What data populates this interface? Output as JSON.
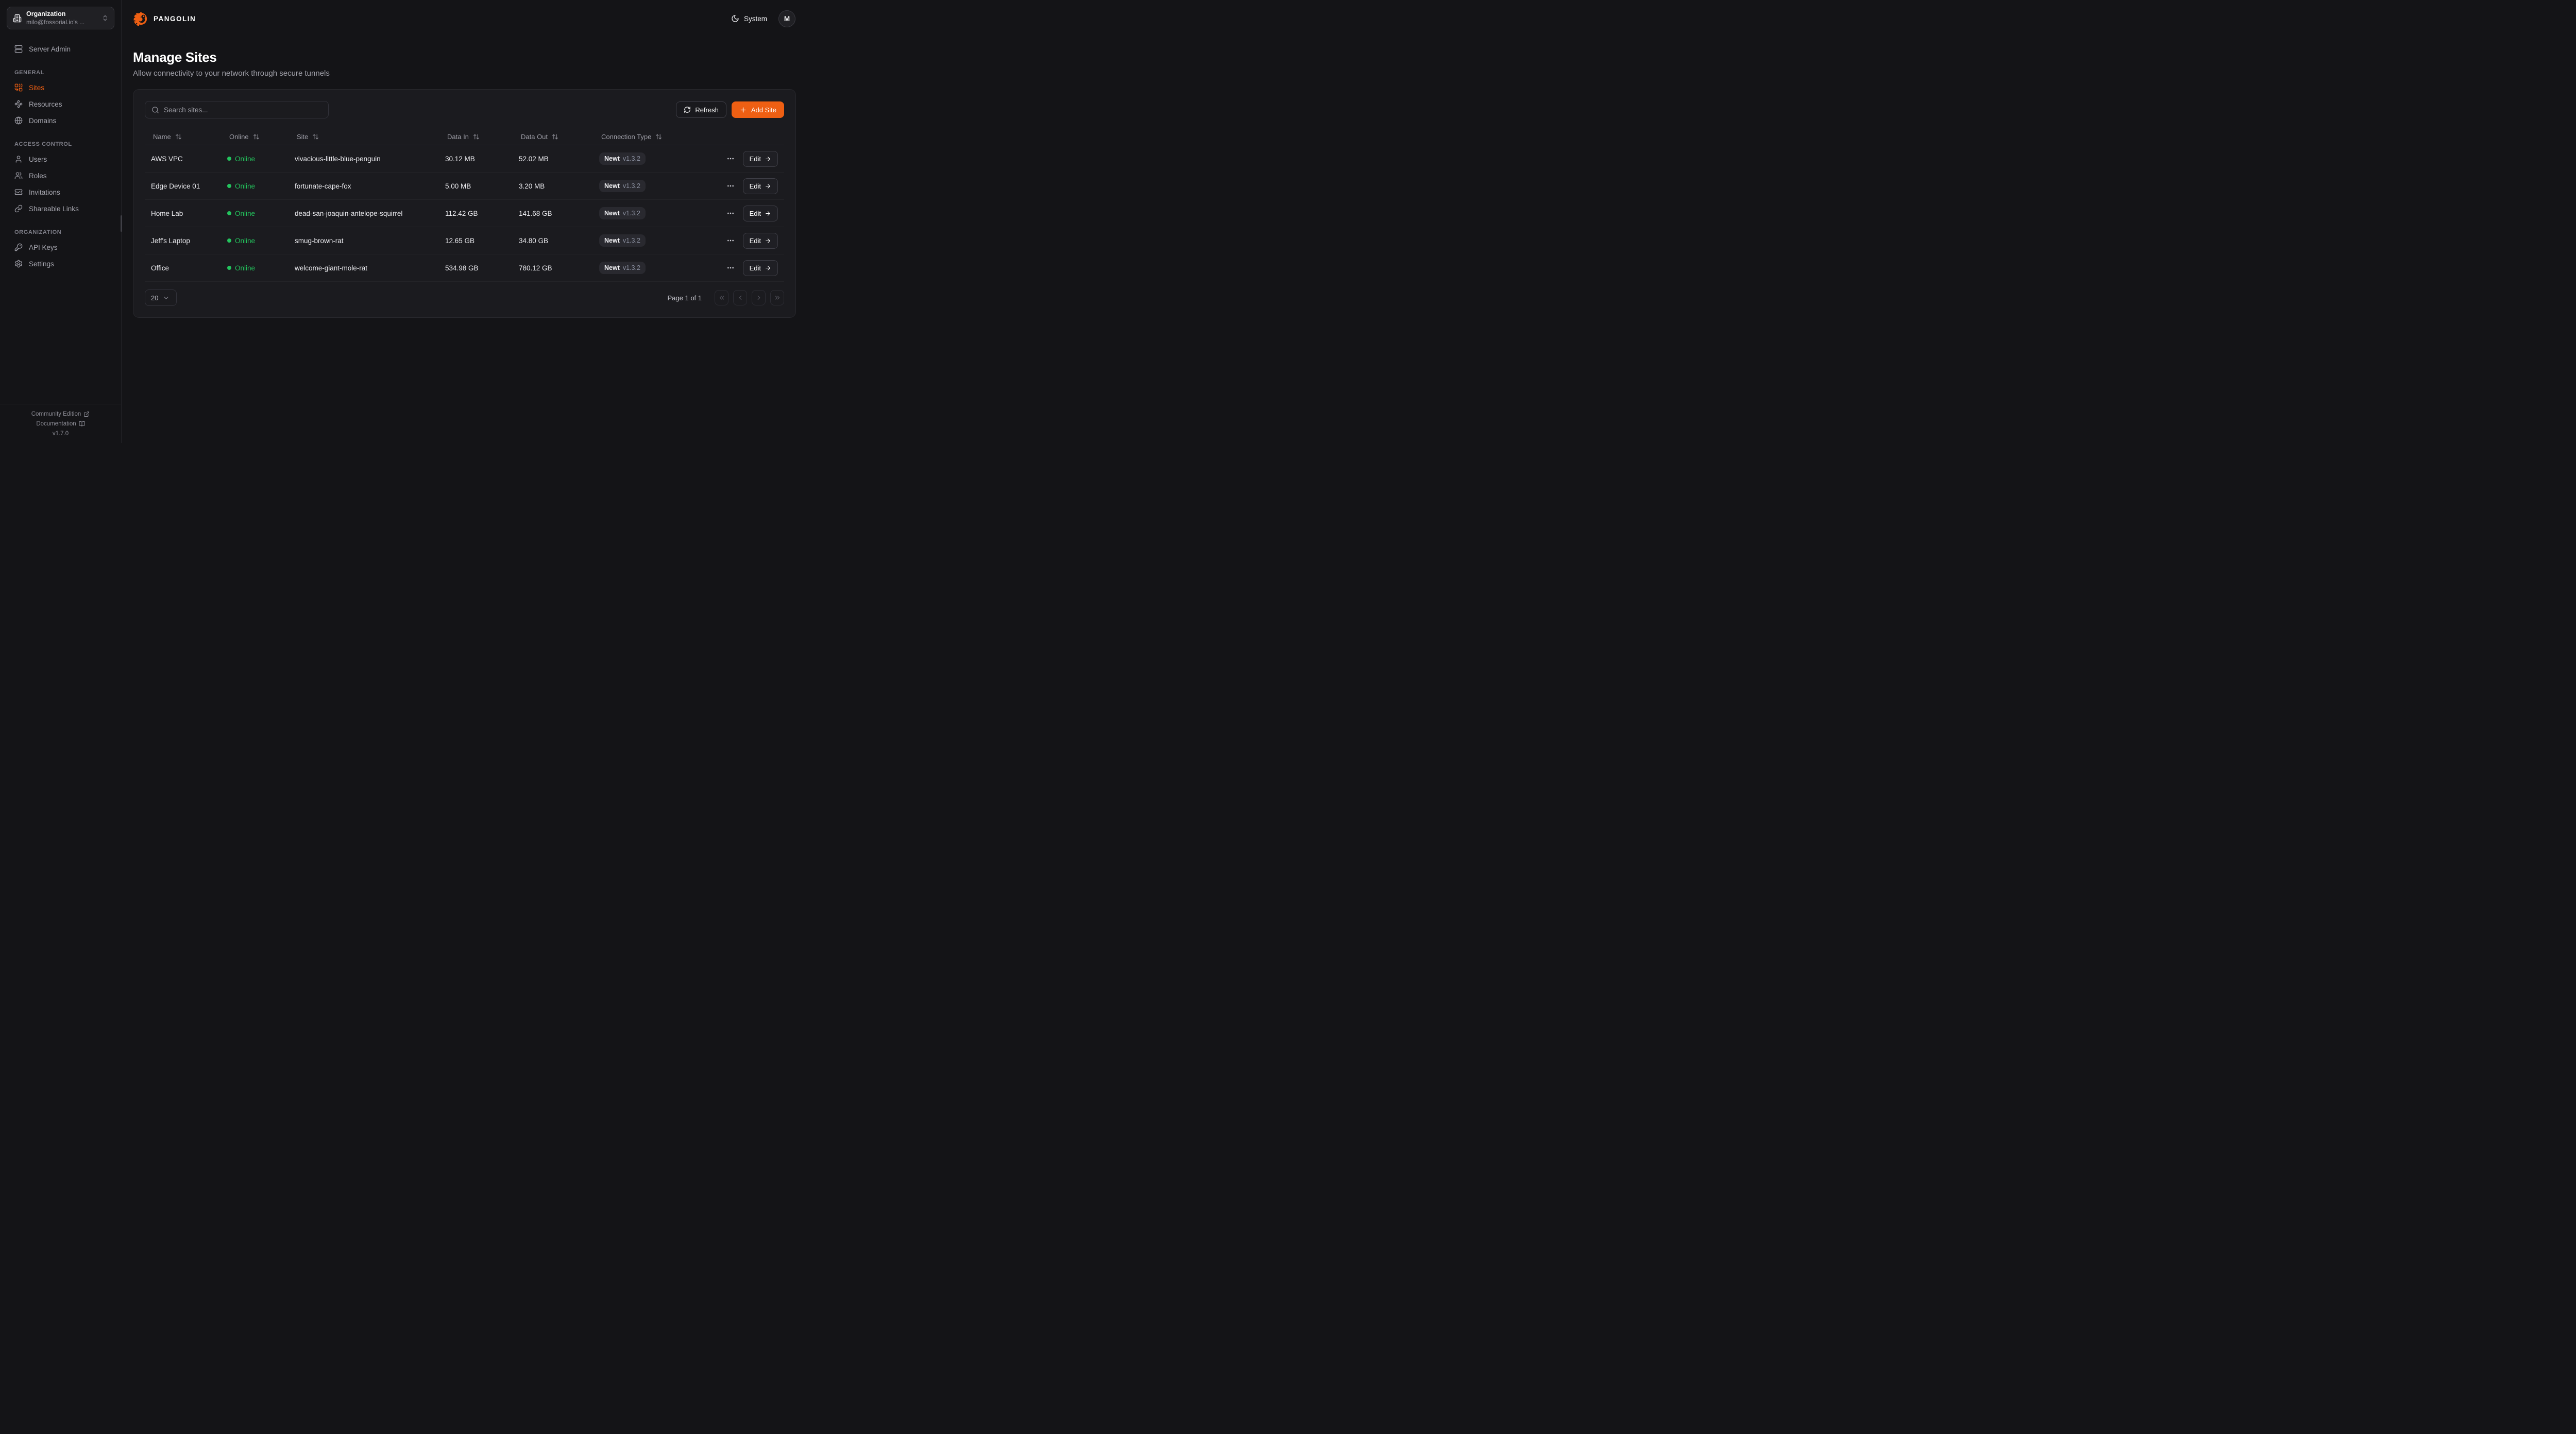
{
  "brand": {
    "name": "PANGOLIN"
  },
  "sidebar": {
    "org_switcher": {
      "label": "Organization",
      "value": "milo@fossorial.io's ..."
    },
    "server_admin": "Server Admin",
    "sections": [
      {
        "label": "GENERAL",
        "items": [
          {
            "label": "Sites"
          },
          {
            "label": "Resources"
          },
          {
            "label": "Domains"
          }
        ]
      },
      {
        "label": "ACCESS CONTROL",
        "items": [
          {
            "label": "Users"
          },
          {
            "label": "Roles"
          },
          {
            "label": "Invitations"
          },
          {
            "label": "Shareable Links"
          }
        ]
      },
      {
        "label": "ORGANIZATION",
        "items": [
          {
            "label": "API Keys"
          },
          {
            "label": "Settings"
          }
        ]
      }
    ],
    "footer": {
      "community": "Community Edition",
      "documentation": "Documentation",
      "version": "v1.7.0"
    }
  },
  "header": {
    "theme_label": "System",
    "avatar_initial": "M"
  },
  "page": {
    "title": "Manage Sites",
    "subtitle": "Allow connectivity to your network through secure tunnels"
  },
  "toolbar": {
    "search_placeholder": "Search sites...",
    "refresh_label": "Refresh",
    "add_site_label": "Add Site"
  },
  "table": {
    "columns": [
      "Name",
      "Online",
      "Site",
      "Data In",
      "Data Out",
      "Connection Type"
    ],
    "edit_label": "Edit",
    "rows": [
      {
        "name": "AWS VPC",
        "status": "Online",
        "site": "vivacious-little-blue-penguin",
        "data_in": "30.12 MB",
        "data_out": "52.02 MB",
        "conn_type": "Newt",
        "conn_version": "v1.3.2"
      },
      {
        "name": "Edge Device 01",
        "status": "Online",
        "site": "fortunate-cape-fox",
        "data_in": "5.00 MB",
        "data_out": "3.20 MB",
        "conn_type": "Newt",
        "conn_version": "v1.3.2"
      },
      {
        "name": "Home Lab",
        "status": "Online",
        "site": "dead-san-joaquin-antelope-squirrel",
        "data_in": "112.42 GB",
        "data_out": "141.68 GB",
        "conn_type": "Newt",
        "conn_version": "v1.3.2"
      },
      {
        "name": "Jeff's Laptop",
        "status": "Online",
        "site": "smug-brown-rat",
        "data_in": "12.65 GB",
        "data_out": "34.80 GB",
        "conn_type": "Newt",
        "conn_version": "v1.3.2"
      },
      {
        "name": "Office",
        "status": "Online",
        "site": "welcome-giant-mole-rat",
        "data_in": "534.98 GB",
        "data_out": "780.12 GB",
        "conn_type": "Newt",
        "conn_version": "v1.3.2"
      }
    ]
  },
  "pagination": {
    "page_size": "20",
    "status": "Page 1 of 1"
  },
  "colors": {
    "accent": "#ee5f13",
    "online": "#23c45d"
  }
}
